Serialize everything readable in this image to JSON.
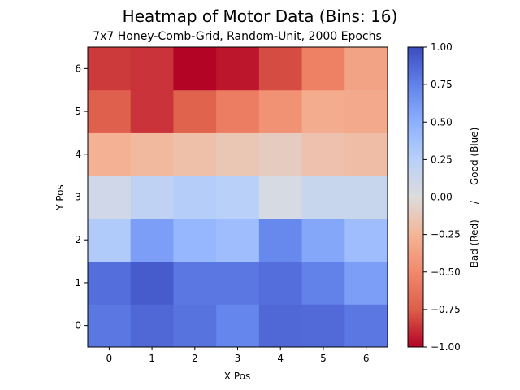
{
  "chart_data": {
    "type": "heatmap",
    "title": "Heatmap of Motor Data (Bins: 16)",
    "subtitle": "7x7 Honey-Comb-Grid, Random-Unit, 2000 Epochs",
    "xlabel": "X Pos",
    "ylabel": "Y Pos",
    "x": [
      "0",
      "1",
      "2",
      "3",
      "4",
      "5",
      "6"
    ],
    "y": [
      "0",
      "1",
      "2",
      "3",
      "4",
      "5",
      "6"
    ],
    "values": [
      [
        0.8,
        0.87,
        0.82,
        0.73,
        0.87,
        0.86,
        0.8
      ],
      [
        0.84,
        0.93,
        0.8,
        0.8,
        0.84,
        0.75,
        0.6
      ],
      [
        0.3,
        0.6,
        0.45,
        0.4,
        0.72,
        0.55,
        0.4
      ],
      [
        0.1,
        0.2,
        0.27,
        0.25,
        0.05,
        0.15,
        0.15
      ],
      [
        -0.27,
        -0.22,
        -0.18,
        -0.14,
        -0.1,
        -0.17,
        -0.2
      ],
      [
        -0.73,
        -0.87,
        -0.72,
        -0.57,
        -0.45,
        -0.3,
        -0.32
      ],
      [
        -0.85,
        -0.87,
        -1.0,
        -0.95,
        -0.8,
        -0.55,
        -0.35
      ]
    ],
    "colormap": "coolwarm_reversed",
    "colorbar": {
      "range": [
        -1.0,
        1.0
      ],
      "ticks": [
        "−1.00",
        "−0.75",
        "−0.50",
        "−0.25",
        "0.00",
        "0.25",
        "0.50",
        "0.75",
        "1.00"
      ],
      "label": "Bad (Red)     /     Good (Blue)"
    },
    "grid": false
  }
}
